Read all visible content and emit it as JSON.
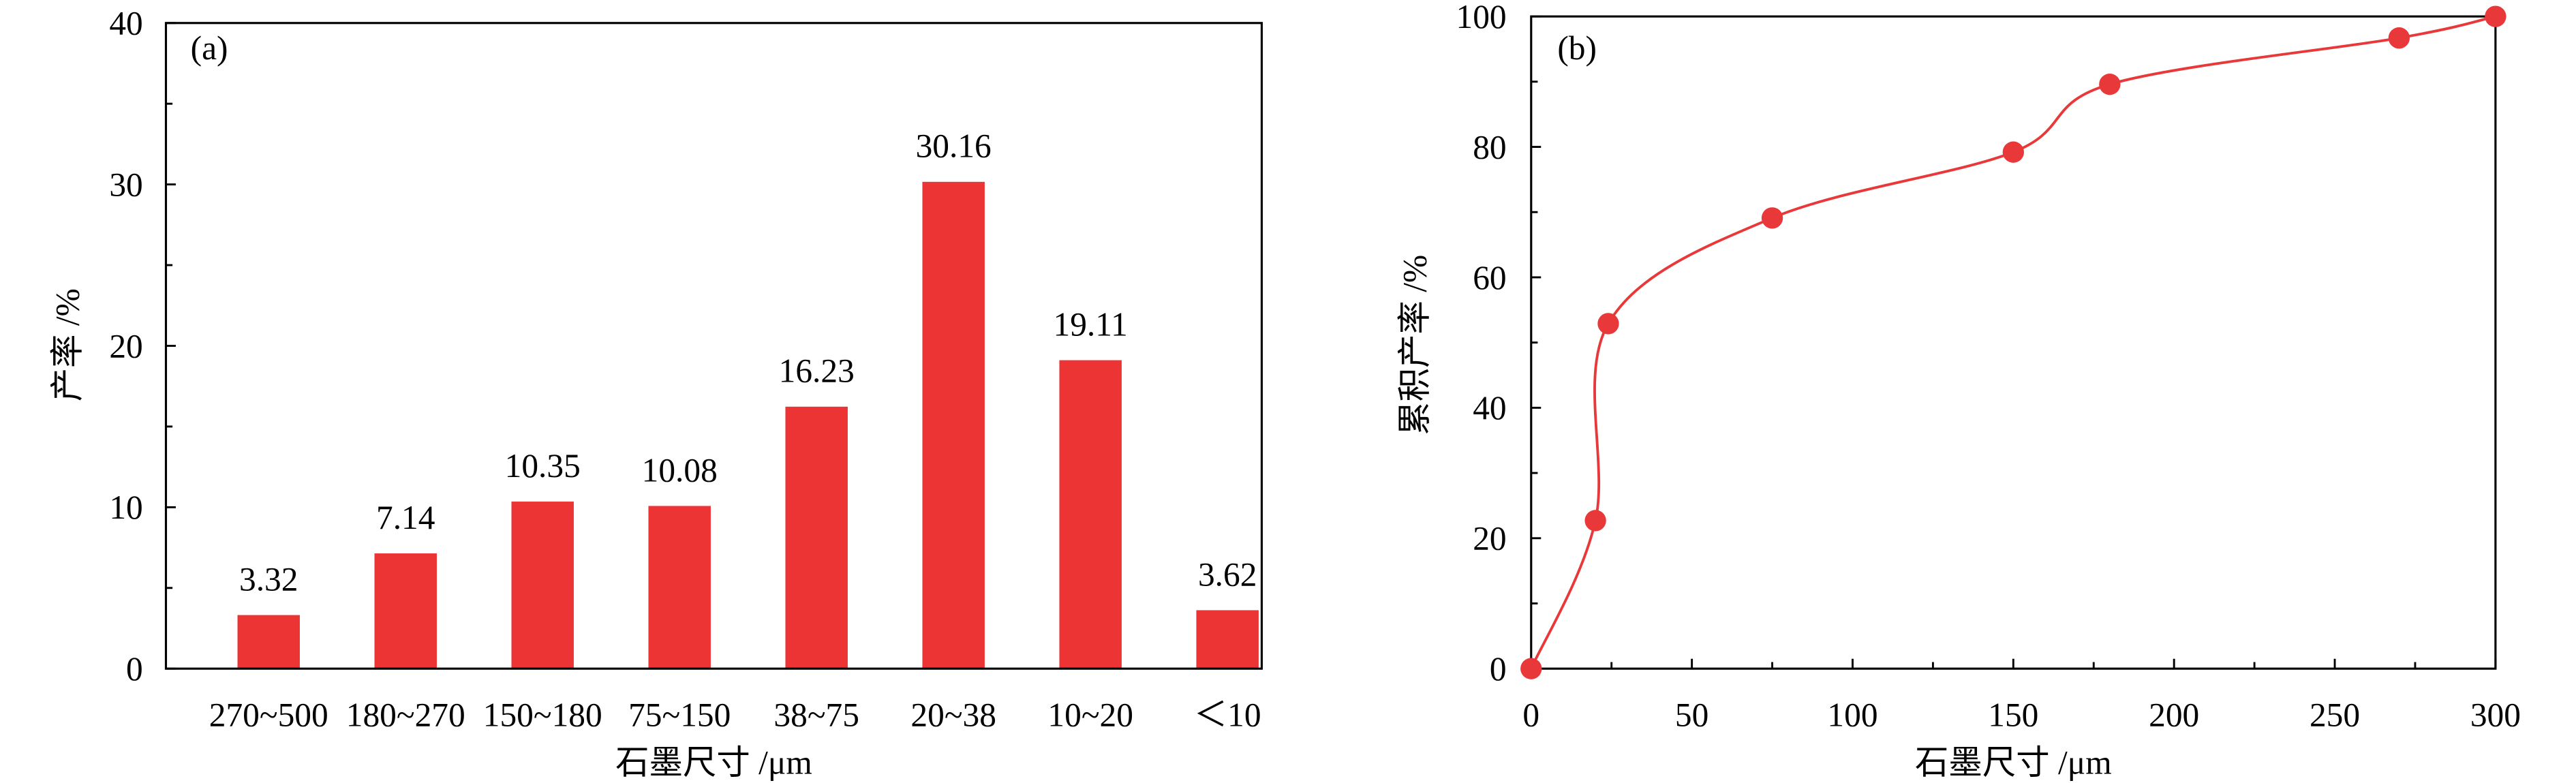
{
  "chart_data": [
    {
      "type": "bar",
      "panel_label": "(a)",
      "categories": [
        "270~500",
        "180~270",
        "150~180",
        "75~150",
        "38~75",
        "20~38",
        "10~20",
        "＜10"
      ],
      "values": [
        3.32,
        7.14,
        10.35,
        10.08,
        16.23,
        30.16,
        19.11,
        3.62
      ],
      "xlabel": "石墨尺寸 /μm",
      "ylabel": "产率 /%",
      "ylim": [
        0,
        40
      ],
      "yticks": [
        0,
        10,
        20,
        30,
        40
      ],
      "color": "#EC3434",
      "data_labels": true,
      "grid": false
    },
    {
      "type": "line",
      "panel_label": "(b)",
      "x": [
        0,
        20,
        24,
        75,
        150,
        180,
        270,
        300
      ],
      "y": [
        0,
        22.7,
        52.9,
        69.1,
        79.2,
        89.6,
        96.7,
        100
      ],
      "xlabel": "石墨尺寸 /μm",
      "ylabel": "累积产率 /%",
      "xlim": [
        0,
        300
      ],
      "ylim": [
        0,
        100
      ],
      "xticks": [
        0,
        50,
        100,
        150,
        200,
        250,
        300
      ],
      "yticks": [
        0,
        20,
        40,
        60,
        80,
        100
      ],
      "color": "#E8383A",
      "smooth": true,
      "markers": true,
      "grid": false
    }
  ]
}
